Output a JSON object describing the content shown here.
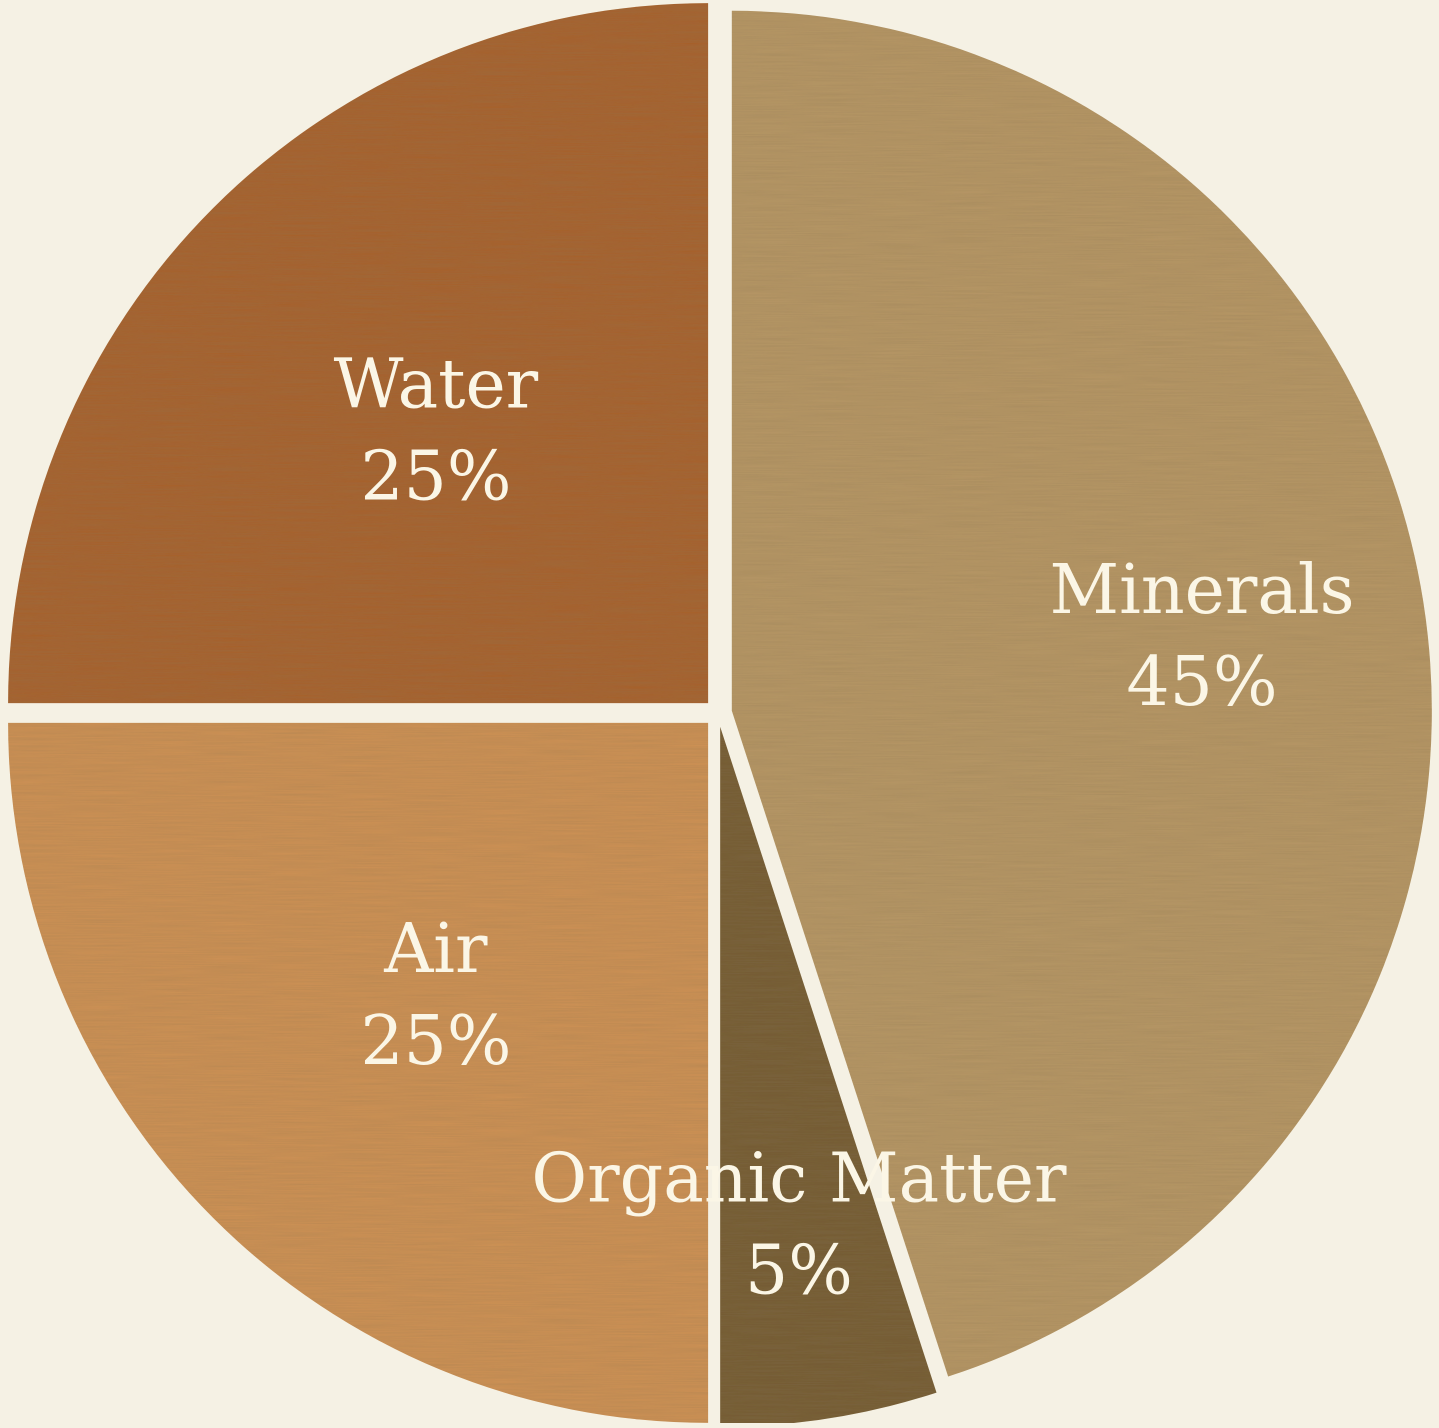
{
  "chart_data": {
    "type": "pie",
    "categories": [
      "Minerals",
      "Organic Matter",
      "Air",
      "Water"
    ],
    "values": [
      45,
      5,
      25,
      25
    ],
    "value_labels": [
      "45%",
      "5%",
      "25%",
      "25%"
    ],
    "start_angle_deg": 0,
    "direction": "clockwise",
    "exploded_slices": "all",
    "colors": [
      "#b79766",
      "#735a32",
      "#cf9255",
      "#a8612c"
    ],
    "background_color": "#f5f1e4",
    "label_color": "#fbf6e6",
    "title": "",
    "legend": "none"
  }
}
